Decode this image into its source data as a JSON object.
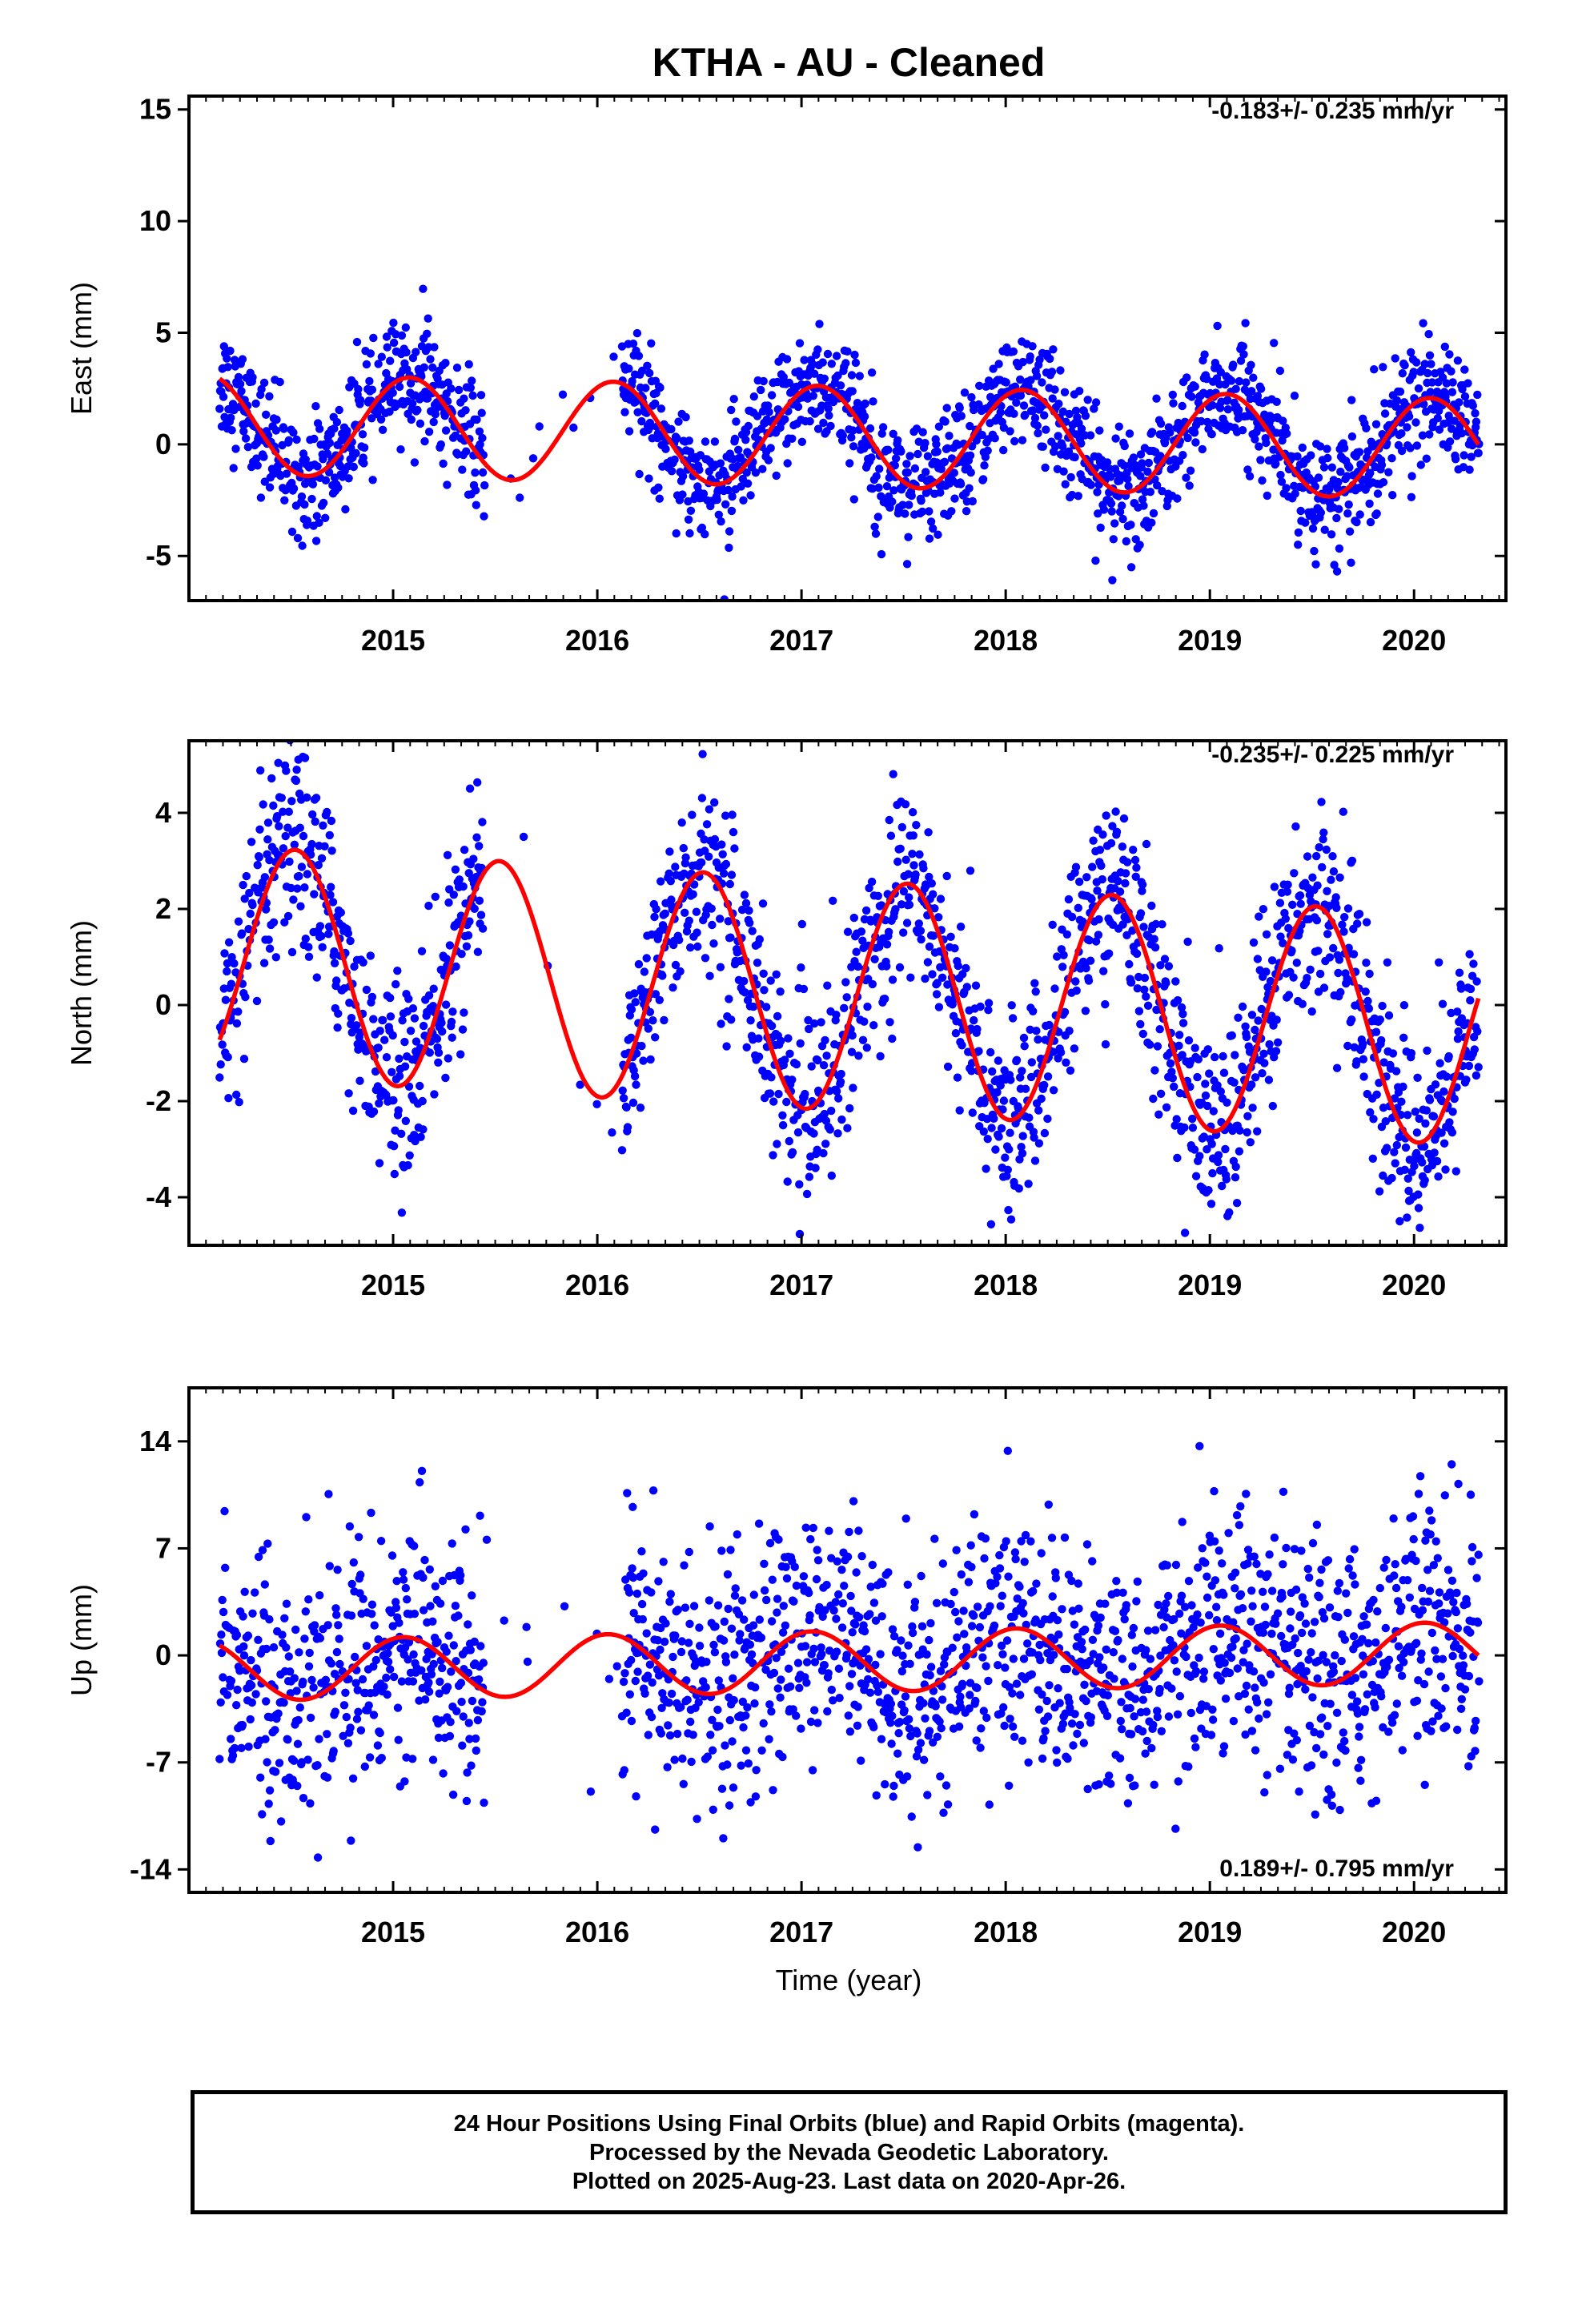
{
  "title": "KTHA  - AU - Cleaned",
  "xlabel": "Time (year)",
  "colors": {
    "points": "#0000ff",
    "fit": "#ff0000",
    "frame": "#000000"
  },
  "chart_data": [
    {
      "type": "scatter",
      "ylabel": "East (mm)",
      "rate_text": "-0.183+/- 0.235 mm/yr",
      "xlim": [
        2014.0,
        2020.45
      ],
      "ylim": [
        -7,
        15.6
      ],
      "xticks": [
        2015,
        2016,
        2017,
        2018,
        2019,
        2020
      ],
      "yticks": [
        -5,
        0,
        5,
        10,
        15
      ],
      "fit": {
        "offset": 0.35,
        "trend": -0.183,
        "t0": 2017.2,
        "amplitude": 2.25,
        "phase_peak": 0.08
      },
      "points_daily": "scatter around fit, sd 1.3 mm",
      "data_span": [
        2014.15,
        2020.32
      ],
      "gaps": [
        [
          2015.45,
          2016.12
        ]
      ]
    },
    {
      "type": "scatter",
      "ylabel": "North (mm)",
      "rate_text": "-0.235+/- 0.225 mm/yr",
      "xlim": [
        2014.0,
        2020.45
      ],
      "ylim": [
        -5,
        5.5
      ],
      "xticks": [
        2015,
        2016,
        2017,
        2018,
        2019,
        2020
      ],
      "yticks": [
        -4,
        -2,
        0,
        2,
        4
      ],
      "fit": {
        "offset": 0.2,
        "trend": -0.235,
        "t0": 2017.2,
        "amplitude": 2.4,
        "phase_peak": 0.52
      },
      "points_daily": "scatter around fit, sd 1.0 mm",
      "data_span": [
        2014.15,
        2020.32
      ],
      "gaps": [
        [
          2015.45,
          2016.12
        ]
      ]
    },
    {
      "type": "scatter",
      "ylabel": "Up (mm)",
      "rate_text": "0.189+/- 0.795 mm/yr",
      "xlim": [
        2014.0,
        2020.45
      ],
      "ylim": [
        -15.5,
        17.5
      ],
      "xticks": [
        2015,
        2016,
        2017,
        2018,
        2019,
        2020
      ],
      "yticks": [
        -14,
        -7,
        0,
        7,
        14
      ],
      "fit": {
        "offset": -0.4,
        "trend": 0.189,
        "t0": 2017.2,
        "amplitude": 2.0,
        "phase_peak": 0.05
      },
      "points_daily": "scatter around fit, sd 4.0 mm",
      "data_span": [
        2014.15,
        2020.32
      ],
      "gaps": [
        [
          2015.45,
          2016.12
        ]
      ]
    }
  ],
  "footer": {
    "line1": "24 Hour Positions Using Final Orbits (blue) and Rapid Orbits (magenta).",
    "line2": "Processed by the Nevada Geodetic Laboratory.",
    "line3": "Plotted on 2025-Aug-23. Last data on 2020-Apr-26."
  }
}
